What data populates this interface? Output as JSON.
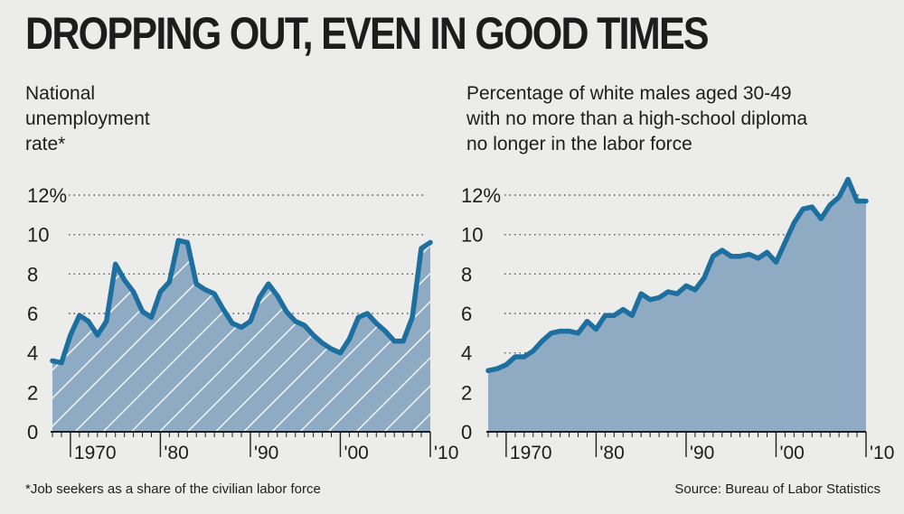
{
  "headline": "DROPPING OUT, EVEN IN GOOD TIMES",
  "footnote": "*Job seekers as a share of the civilian labor force",
  "source": "Source: Bureau of Labor Statistics",
  "colors": {
    "line": "#1d6f9f",
    "fill": "#8fabc4",
    "hatch": "#ffffff",
    "grid": "#555555",
    "text": "#1d1d1d",
    "background": "#ececea"
  },
  "chart_data": [
    {
      "type": "area",
      "subtitle_lines": [
        "National",
        "unemployment",
        "rate*"
      ],
      "fill_style": "hatched",
      "x_ticks": [
        {
          "value": 1970,
          "label": "1970"
        },
        {
          "value": 1980,
          "label": "'80"
        },
        {
          "value": 1990,
          "label": "'90"
        },
        {
          "value": 2000,
          "label": "'00"
        },
        {
          "value": 2010,
          "label": "'10"
        }
      ],
      "y_ticks": [
        {
          "value": 0,
          "label": "0"
        },
        {
          "value": 2,
          "label": "2"
        },
        {
          "value": 4,
          "label": "4"
        },
        {
          "value": 6,
          "label": "6"
        },
        {
          "value": 8,
          "label": "8"
        },
        {
          "value": 10,
          "label": "10"
        },
        {
          "value": 12,
          "label": "12%"
        }
      ],
      "xlim": [
        1968,
        2010
      ],
      "ylim": [
        0,
        12
      ],
      "grid": "dotted-horizontal",
      "x": [
        1968,
        1969,
        1970,
        1971,
        1972,
        1973,
        1974,
        1975,
        1976,
        1977,
        1978,
        1979,
        1980,
        1981,
        1982,
        1983,
        1984,
        1985,
        1986,
        1987,
        1988,
        1989,
        1990,
        1991,
        1992,
        1993,
        1994,
        1995,
        1996,
        1997,
        1998,
        1999,
        2000,
        2001,
        2002,
        2003,
        2004,
        2005,
        2006,
        2007,
        2008,
        2009,
        2010
      ],
      "values": [
        3.6,
        3.5,
        4.9,
        5.9,
        5.6,
        4.9,
        5.6,
        8.5,
        7.7,
        7.1,
        6.1,
        5.8,
        7.1,
        7.6,
        9.7,
        9.6,
        7.5,
        7.2,
        7.0,
        6.2,
        5.5,
        5.3,
        5.6,
        6.8,
        7.5,
        6.9,
        6.1,
        5.6,
        5.4,
        4.9,
        4.5,
        4.2,
        4.0,
        4.7,
        5.8,
        6.0,
        5.5,
        5.1,
        4.6,
        4.6,
        5.8,
        9.3,
        9.6
      ]
    },
    {
      "type": "area",
      "subtitle_lines": [
        "Percentage of white males aged 30-49",
        "with no more than a high-school diploma",
        "no longer in the labor force"
      ],
      "fill_style": "solid",
      "x_ticks": [
        {
          "value": 1970,
          "label": "1970"
        },
        {
          "value": 1980,
          "label": "'80"
        },
        {
          "value": 1990,
          "label": "'90"
        },
        {
          "value": 2000,
          "label": "'00"
        },
        {
          "value": 2010,
          "label": "'10"
        }
      ],
      "y_ticks": [
        {
          "value": 0,
          "label": "0"
        },
        {
          "value": 2,
          "label": "2"
        },
        {
          "value": 4,
          "label": "4"
        },
        {
          "value": 6,
          "label": "6"
        },
        {
          "value": 8,
          "label": "8"
        },
        {
          "value": 10,
          "label": "10"
        },
        {
          "value": 12,
          "label": "12%"
        }
      ],
      "xlim": [
        1968,
        2010
      ],
      "ylim": [
        0,
        12
      ],
      "grid": "dotted-horizontal",
      "x": [
        1968,
        1969,
        1970,
        1971,
        1972,
        1973,
        1974,
        1975,
        1976,
        1977,
        1978,
        1979,
        1980,
        1981,
        1982,
        1983,
        1984,
        1985,
        1986,
        1987,
        1988,
        1989,
        1990,
        1991,
        1992,
        1993,
        1994,
        1995,
        1996,
        1997,
        1998,
        1999,
        2000,
        2001,
        2002,
        2003,
        2004,
        2005,
        2006,
        2007,
        2008,
        2009,
        2010
      ],
      "values": [
        3.1,
        3.2,
        3.4,
        3.8,
        3.8,
        4.1,
        4.6,
        5.0,
        5.1,
        5.1,
        5.0,
        5.6,
        5.2,
        5.9,
        5.9,
        6.2,
        5.9,
        7.0,
        6.7,
        6.8,
        7.1,
        7.0,
        7.4,
        7.2,
        7.8,
        8.9,
        9.2,
        8.9,
        8.9,
        9.0,
        8.8,
        9.1,
        8.6,
        9.6,
        10.6,
        11.3,
        11.4,
        10.8,
        11.5,
        11.9,
        12.8,
        11.7,
        11.7
      ]
    }
  ]
}
